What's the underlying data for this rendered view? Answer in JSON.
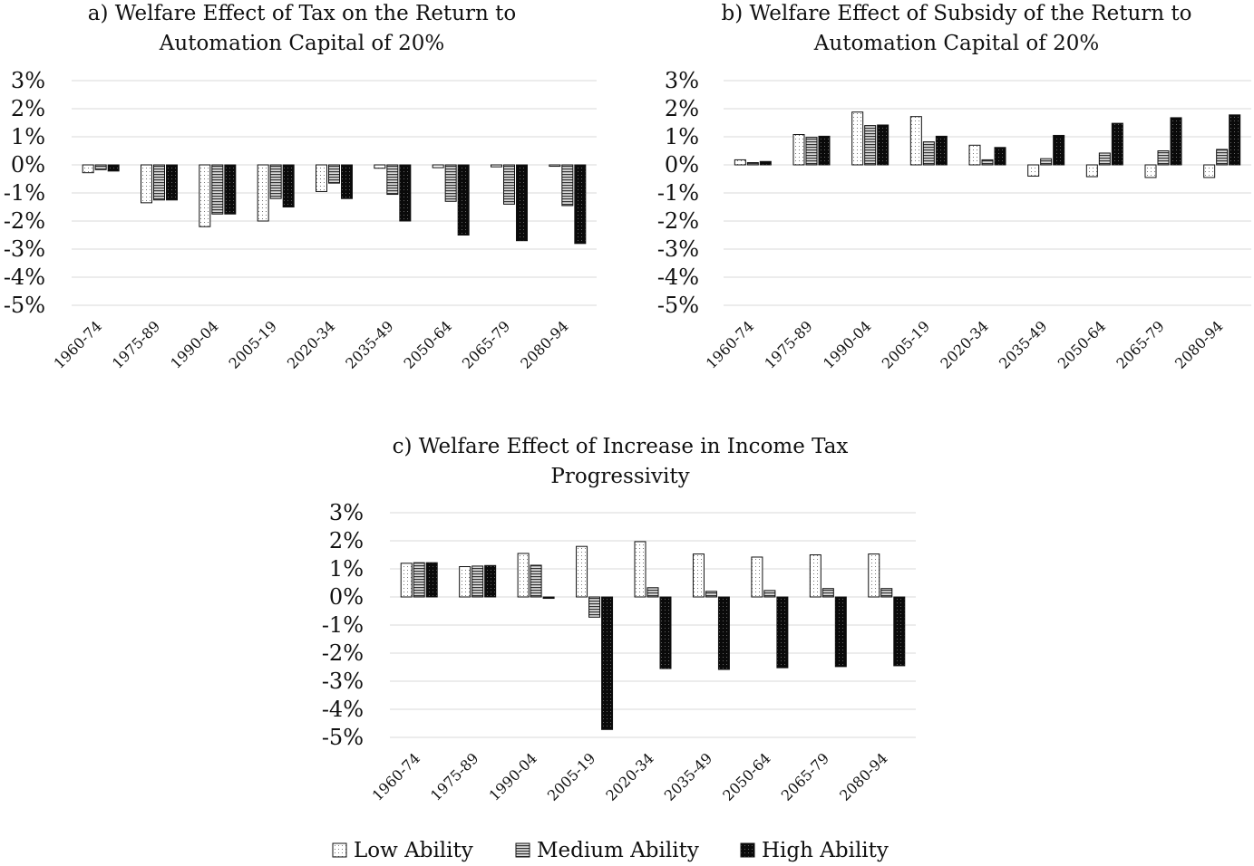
{
  "colors": {
    "grid": "#d9d9d9",
    "low": "#ffffff",
    "medium": "#9a9a9a",
    "high": "#0a0a0a",
    "stroke": "#111111"
  },
  "legend": [
    {
      "key": "low",
      "label": "Low Ability"
    },
    {
      "key": "medium",
      "label": "Medium Ability"
    },
    {
      "key": "high",
      "label": "High Ability"
    }
  ],
  "chart_data": [
    {
      "id": "a",
      "type": "bar",
      "title_lines": [
        "a) Welfare Effect of Tax on the Return to",
        "Automation Capital of 20%"
      ],
      "ylim": [
        -5,
        3
      ],
      "yticks": [
        "3%",
        "2%",
        "1%",
        "0%",
        "-1%",
        "-2%",
        "-3%",
        "-4%",
        "-5%"
      ],
      "categories": [
        "1960-74",
        "1975-89",
        "1990-04",
        "2005-19",
        "2020-34",
        "2035-49",
        "2050-64",
        "2065-79",
        "2080-94"
      ],
      "series": [
        {
          "name": "Low Ability",
          "values": [
            -0.28,
            -1.35,
            -2.2,
            -2.0,
            -0.95,
            -0.12,
            -0.1,
            -0.07,
            -0.05
          ]
        },
        {
          "name": "Medium Ability",
          "values": [
            -0.17,
            -1.25,
            -1.75,
            -1.2,
            -0.65,
            -1.05,
            -1.3,
            -1.4,
            -1.45
          ]
        },
        {
          "name": "High Ability",
          "values": [
            -0.22,
            -1.25,
            -1.75,
            -1.5,
            -1.2,
            -2.0,
            -2.5,
            -2.7,
            -2.8
          ]
        }
      ]
    },
    {
      "id": "b",
      "type": "bar",
      "title_lines": [
        "b) Welfare Effect of Subsidy of the Return to",
        "Automation Capital of 20%"
      ],
      "ylim": [
        -5,
        3
      ],
      "yticks": [
        "3%",
        "2%",
        "1%",
        "0%",
        "-1%",
        "-2%",
        "-3%",
        "-4%",
        "-5%"
      ],
      "categories": [
        "1960-74",
        "1975-89",
        "1990-04",
        "2005-19",
        "2020-34",
        "2035-49",
        "2050-64",
        "2065-79",
        "2080-94"
      ],
      "series": [
        {
          "name": "Low Ability",
          "values": [
            0.18,
            1.08,
            1.88,
            1.72,
            0.7,
            -0.4,
            -0.42,
            -0.45,
            -0.45
          ]
        },
        {
          "name": "Medium Ability",
          "values": [
            0.08,
            0.98,
            1.4,
            0.82,
            0.18,
            0.22,
            0.42,
            0.5,
            0.55
          ]
        },
        {
          "name": "High Ability",
          "values": [
            0.12,
            1.02,
            1.42,
            1.02,
            0.62,
            1.05,
            1.48,
            1.68,
            1.78
          ]
        }
      ]
    },
    {
      "id": "c",
      "type": "bar",
      "title_lines": [
        "c) Welfare Effect of Increase in Income Tax",
        "Progressivity"
      ],
      "ylim": [
        -5,
        3
      ],
      "yticks": [
        "3%",
        "2%",
        "1%",
        "0%",
        "-1%",
        "-2%",
        "-3%",
        "-4%",
        "-5%"
      ],
      "categories": [
        "1960-74",
        "1975-89",
        "1990-04",
        "2005-19",
        "2020-34",
        "2035-49",
        "2050-64",
        "2065-79",
        "2080-94"
      ],
      "series": [
        {
          "name": "Low Ability",
          "values": [
            1.2,
            1.08,
            1.55,
            1.8,
            1.97,
            1.53,
            1.42,
            1.5,
            1.53
          ]
        },
        {
          "name": "Medium Ability",
          "values": [
            1.22,
            1.1,
            1.13,
            -0.72,
            0.33,
            0.2,
            0.23,
            0.3,
            0.3
          ]
        },
        {
          "name": "High Ability",
          "values": [
            1.22,
            1.12,
            -0.05,
            -4.72,
            -2.55,
            -2.58,
            -2.52,
            -2.48,
            -2.45
          ]
        }
      ]
    }
  ]
}
